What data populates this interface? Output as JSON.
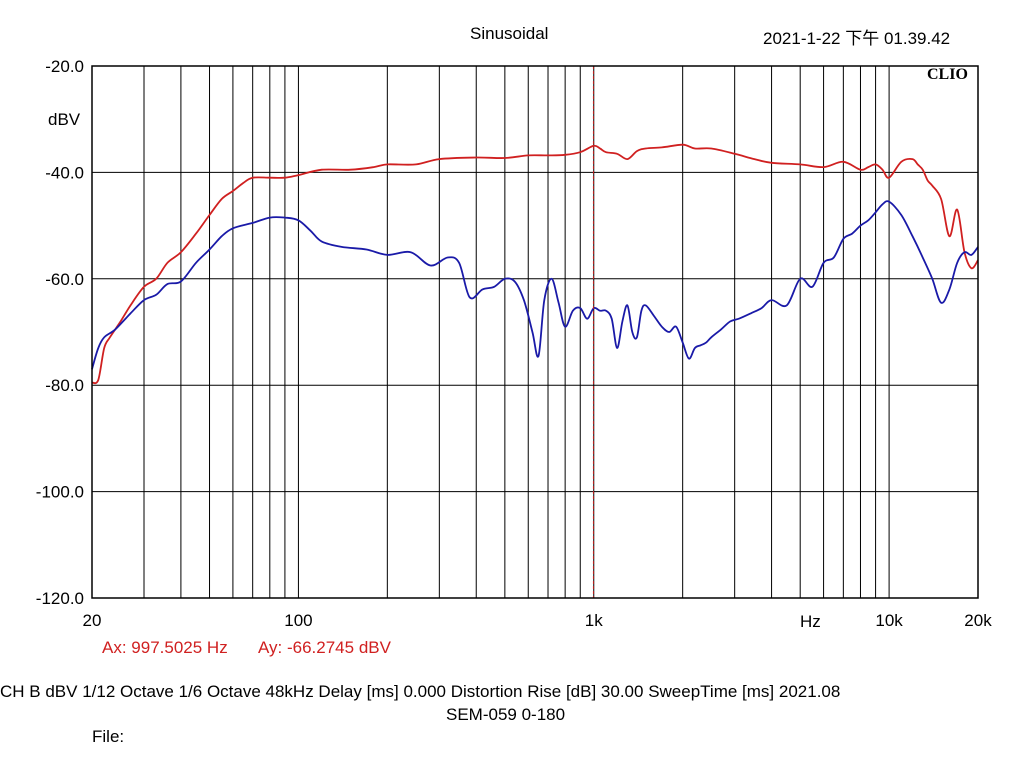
{
  "header": {
    "title": "Sinusoidal",
    "datetime": "2021-1-22 下午 01.39.42"
  },
  "brand": "CLIO",
  "cursor": {
    "ax": "Ax: 997.5025 Hz",
    "ay": "Ay: -66.2745 dBV",
    "x_value": 997.5025
  },
  "footer": {
    "settings": "CH B   dBV    1/12 Octave    1/6 Octave    48kHz    Delay [ms] 0.000    Distortion Rise [dB] 30.00    SweepTime [ms] 2021.08",
    "file_name": "SEM-059 0-180",
    "file_label": "File:"
  },
  "colors": {
    "red_series": "#d02020",
    "blue_series": "#1a1aa8",
    "cursor": "#c02020",
    "grid": "#000000"
  },
  "chart_data": {
    "type": "line",
    "x_scale": "log",
    "xlim": [
      20,
      20000
    ],
    "ylim": [
      -120,
      -20
    ],
    "ylabel": "dBV",
    "grid": true,
    "x_ticks": [
      {
        "value": 20,
        "label": "20"
      },
      {
        "value": 100,
        "label": "100"
      },
      {
        "value": 1000,
        "label": "1k"
      },
      {
        "value": 10000,
        "label": "10k"
      },
      {
        "value": 20000,
        "label": "20k"
      }
    ],
    "x_unit_label": "Hz",
    "y_ticks": [
      {
        "value": -20,
        "label": "-20.0"
      },
      {
        "value": -40,
        "label": "-40.0"
      },
      {
        "value": -60,
        "label": "-60.0"
      },
      {
        "value": -80,
        "label": "-80.0"
      },
      {
        "value": -100,
        "label": "-100.0"
      },
      {
        "value": -120,
        "label": "-120.0"
      }
    ],
    "series": [
      {
        "color": "#d02020",
        "x": [
          20,
          21,
          22,
          23,
          25,
          27,
          30,
          33,
          36,
          40,
          45,
          50,
          55,
          60,
          65,
          70,
          80,
          90,
          100,
          120,
          150,
          180,
          200,
          250,
          300,
          400,
          500,
          600,
          700,
          800,
          900,
          1000,
          1050,
          1100,
          1200,
          1300,
          1400,
          1500,
          1700,
          2000,
          2200,
          2500,
          3000,
          3500,
          4000,
          5000,
          6000,
          7000,
          8000,
          8500,
          9000,
          9500,
          10000,
          11000,
          12000,
          12500,
          13000,
          13500,
          14000,
          15000,
          16000,
          17000,
          18000,
          19000,
          20000
        ],
        "y": [
          -79.5,
          -79,
          -73,
          -71,
          -68,
          -65,
          -61.5,
          -60,
          -57,
          -55,
          -51.5,
          -48,
          -45,
          -43.5,
          -42,
          -41,
          -41,
          -41,
          -40.5,
          -39.5,
          -39.5,
          -39,
          -38.5,
          -38.5,
          -37.5,
          -37.2,
          -37.3,
          -36.8,
          -36.8,
          -36.7,
          -36.2,
          -35,
          -35.5,
          -36.2,
          -36.5,
          -37.5,
          -36,
          -35.5,
          -35.3,
          -34.8,
          -35.5,
          -35.5,
          -36.5,
          -37.5,
          -38.2,
          -38.5,
          -39,
          -38,
          -39.5,
          -39,
          -38.5,
          -39.5,
          -41,
          -38,
          -37.5,
          -38.5,
          -39.5,
          -41.5,
          -42.5,
          -45,
          -52,
          -47,
          -55,
          -58,
          -56.5
        ]
      },
      {
        "color": "#1a1aa8",
        "x": [
          20,
          21,
          22,
          24,
          27,
          30,
          33,
          36,
          40,
          45,
          50,
          55,
          60,
          70,
          80,
          90,
          100,
          110,
          120,
          140,
          170,
          200,
          240,
          280,
          320,
          350,
          380,
          420,
          460,
          500,
          540,
          580,
          620,
          650,
          680,
          720,
          760,
          800,
          850,
          900,
          950,
          1000,
          1050,
          1100,
          1150,
          1200,
          1250,
          1300,
          1350,
          1400,
          1450,
          1500,
          1600,
          1700,
          1800,
          1900,
          2000,
          2100,
          2200,
          2300,
          2400,
          2500,
          2700,
          2900,
          3100,
          3400,
          3700,
          4000,
          4500,
          5000,
          5500,
          6000,
          6500,
          7000,
          7500,
          8000,
          8500,
          9000,
          9500,
          10000,
          11000,
          12000,
          13000,
          14000,
          15000,
          16000,
          17000,
          18000,
          19000,
          20000
        ],
        "y": [
          -77,
          -73,
          -71,
          -69.5,
          -66.5,
          -64,
          -63,
          -61,
          -60.5,
          -57,
          -54.5,
          -52,
          -50.5,
          -49.5,
          -48.5,
          -48.5,
          -49,
          -51,
          -53,
          -54,
          -54.5,
          -55.5,
          -55,
          -57.5,
          -56,
          -57,
          -63.5,
          -62,
          -61.5,
          -60,
          -60.5,
          -64,
          -70,
          -74.5,
          -64,
          -60,
          -64.5,
          -69,
          -66,
          -65.5,
          -67.5,
          -65.5,
          -66,
          -66,
          -67.5,
          -73,
          -68,
          -65,
          -70,
          -71,
          -66,
          -65,
          -67,
          -69,
          -70,
          -69,
          -72,
          -75,
          -73,
          -72.5,
          -72,
          -71,
          -69.5,
          -68,
          -67.5,
          -66.5,
          -65.5,
          -64,
          -65,
          -60,
          -61.5,
          -57,
          -56,
          -52.5,
          -51.5,
          -50,
          -49,
          -47.5,
          -46,
          -45.5,
          -48,
          -52,
          -56,
          -60,
          -64.5,
          -62,
          -57,
          -55,
          -55.5,
          -54
        ]
      }
    ]
  }
}
